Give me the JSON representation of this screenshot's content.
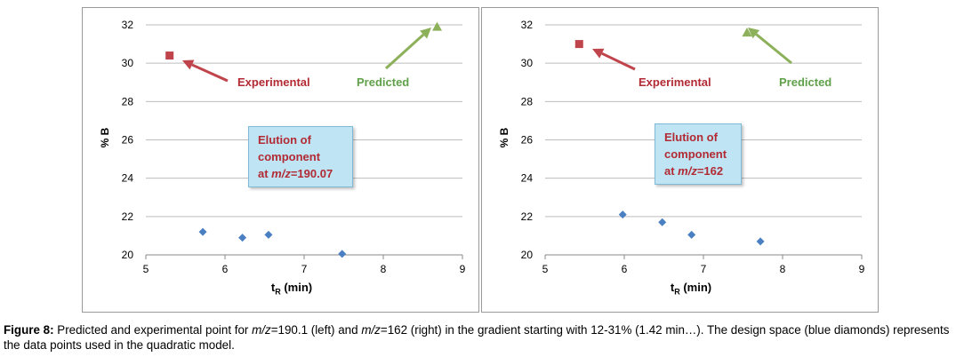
{
  "chart_data": [
    {
      "type": "scatter",
      "xlabel_main": "t",
      "xlabel_sub": "R",
      "xlabel_rest": " (min)",
      "ylabel": "% B",
      "xlim": [
        5,
        9
      ],
      "ylim": [
        20,
        32
      ],
      "x_ticks": [
        "5",
        "6",
        "7",
        "8",
        "9"
      ],
      "y_ticks": [
        "20",
        "22",
        "24",
        "26",
        "28",
        "30",
        "32"
      ],
      "grid": "horizontal",
      "series": [
        {
          "marker": "diamond",
          "color": "#4a7fc1",
          "points": [
            [
              5.72,
              21.2
            ],
            [
              6.22,
              20.9
            ],
            [
              6.55,
              21.05
            ],
            [
              7.48,
              20.05
            ]
          ]
        },
        {
          "name": "Experimental",
          "marker": "square",
          "color": "#c0444c",
          "points": [
            [
              5.3,
              30.4
            ]
          ]
        },
        {
          "name": "Predicted",
          "marker": "triangle",
          "color": "#8db05a",
          "points": [
            [
              8.68,
              31.9
            ]
          ]
        }
      ],
      "annotation_lines": [
        "Elution of",
        "component",
        "at m/z=190.07"
      ],
      "annotation_prefix": "at ",
      "annotation_italic": "m/z",
      "annotation_value": "=190.07"
    },
    {
      "type": "scatter",
      "xlabel_main": "t",
      "xlabel_sub": "R",
      "xlabel_rest": " (min)",
      "ylabel": "% B",
      "xlim": [
        5,
        9
      ],
      "ylim": [
        20,
        32
      ],
      "x_ticks": [
        "5",
        "6",
        "7",
        "8",
        "9"
      ],
      "y_ticks": [
        "20",
        "22",
        "24",
        "26",
        "28",
        "30",
        "32"
      ],
      "grid": "horizontal",
      "series": [
        {
          "marker": "diamond",
          "color": "#4a7fc1",
          "points": [
            [
              5.98,
              22.1
            ],
            [
              6.48,
              21.7
            ],
            [
              6.85,
              21.05
            ],
            [
              7.72,
              20.7
            ]
          ]
        },
        {
          "name": "Experimental",
          "marker": "square",
          "color": "#c0444c",
          "points": [
            [
              5.43,
              31.0
            ]
          ]
        },
        {
          "name": "Predicted",
          "marker": "triangle",
          "color": "#8db05a",
          "points": [
            [
              7.55,
              31.6
            ]
          ]
        }
      ],
      "annotation_lines": [
        "Elution of",
        "component",
        "at m/z=162"
      ],
      "annotation_prefix": "at ",
      "annotation_italic": "m/z",
      "annotation_value": "=162"
    }
  ],
  "caption": {
    "label": "Figure 8:",
    "part1": " Predicted and experimental point for ",
    "mz1": "m/z",
    "part2": "=190.1 (left) and ",
    "mz2": "m/z",
    "part3": "=162 (right) in the gradient starting with 12-31% (1.42 min…). The design space (blue diamonds) represents the data points used in the quadratic model."
  }
}
